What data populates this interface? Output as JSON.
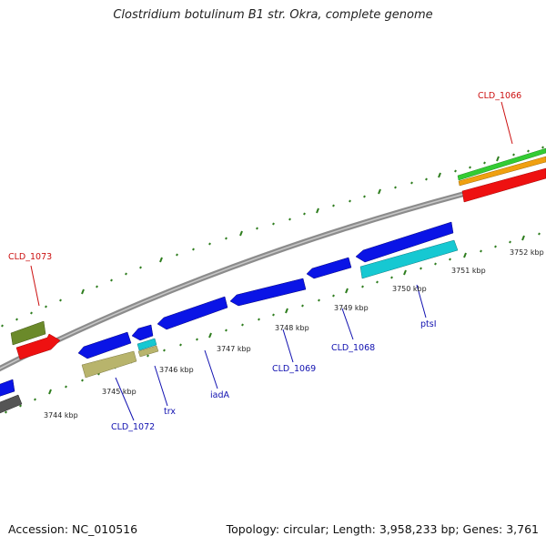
{
  "title": "Clostridium botulinum B1 str. Okra, complete genome",
  "footer": {
    "accession": "Accession: NC_010516",
    "summary": "Topology: circular; Length: 3,958,233 bp; Genes: 3,761"
  },
  "colors": {
    "backbone": "#8c8c8c",
    "tick": "#2e7d1e",
    "cds": "#0a14e6",
    "cds_label": "#1010b0",
    "highlight_label": "#cc1111",
    "trna_cyan": "#16c8d2",
    "khaki": "#b8b46c",
    "olive": "#6b8a2a",
    "red": "#ee1111",
    "green": "#33cc33",
    "orange": "#f0a010",
    "grey_gene": "#555555"
  },
  "scale_labels": [
    "3744 kbp",
    "3745 kbp",
    "3746 kbp",
    "3747 kbp",
    "3748 kbp",
    "3749 kbp",
    "3750 kbp",
    "3751 kbp",
    "3752 kbp"
  ],
  "gene_labels": {
    "cld_1073": "CLD_1073",
    "cld_1066": "CLD_1066",
    "cld_1072": "CLD_1072",
    "trx": "trx",
    "iada": "iadA",
    "cld_1069": "CLD_1069",
    "cld_1068": "CLD_1068",
    "ptsi": "ptsI"
  }
}
